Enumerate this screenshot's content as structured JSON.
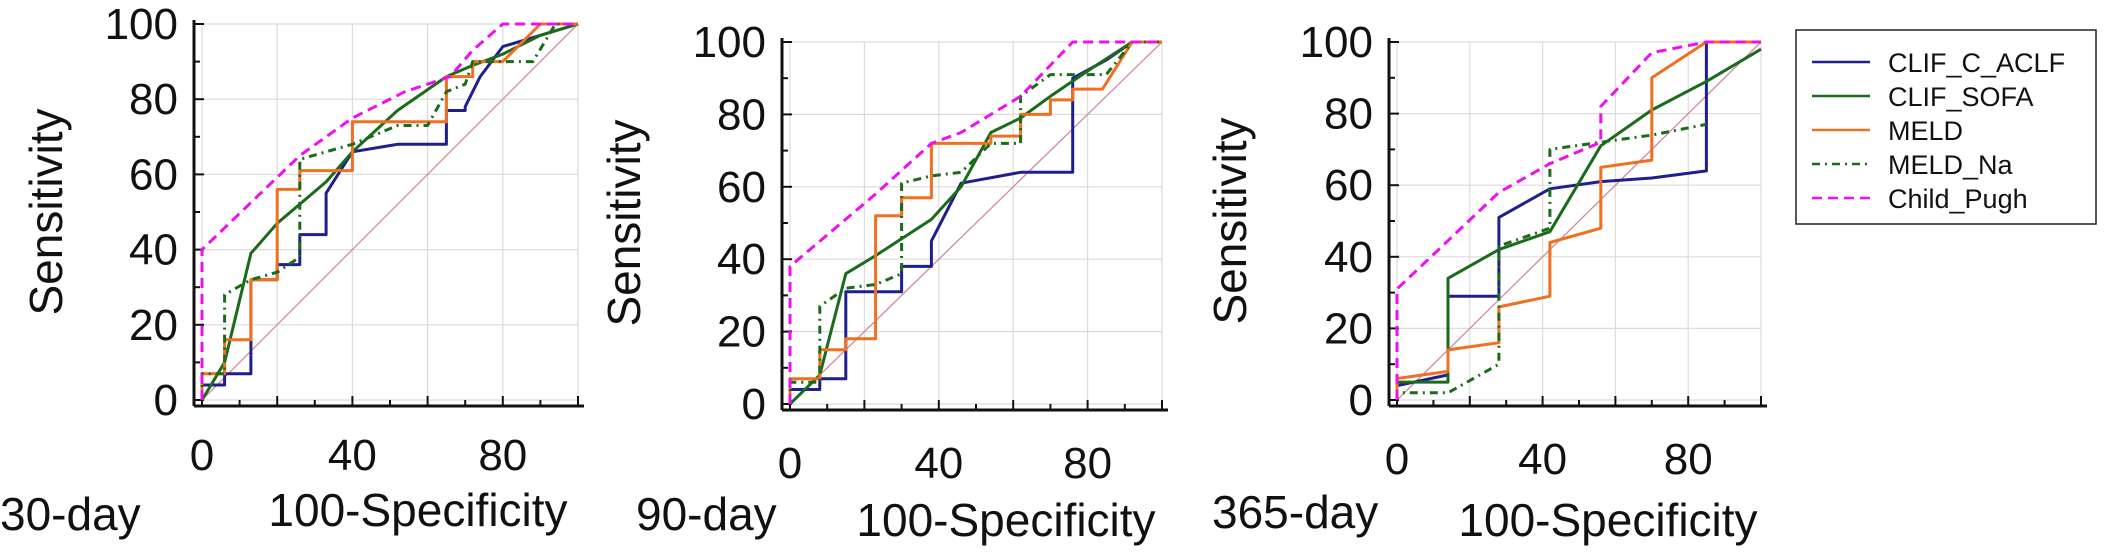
{
  "chart_data": [
    {
      "type": "line",
      "period_label": "30-day",
      "xlabel": "100-Specificity",
      "ylabel": "Sensitivity",
      "xlim": [
        0,
        100
      ],
      "ylim": [
        0,
        100
      ],
      "xticks": [
        0,
        40,
        80
      ],
      "yticks": [
        0,
        20,
        40,
        60,
        80,
        100
      ],
      "grid": true,
      "series": [
        {
          "name": "CLIF_C_ACLF",
          "color": "#1f1f8f",
          "dash": "solid",
          "x": [
            0,
            0,
            6,
            6,
            13,
            13,
            20,
            20,
            26,
            26,
            33,
            33,
            40,
            52,
            65,
            65,
            70,
            70,
            74,
            80,
            100
          ],
          "y": [
            0,
            4,
            4,
            7,
            7,
            32,
            32,
            36,
            36,
            44,
            44,
            55,
            66,
            68,
            68,
            77,
            77,
            78,
            86,
            94,
            100
          ]
        },
        {
          "name": "CLIF_SOFA",
          "color": "#1a6b1a",
          "dash": "solid",
          "x": [
            0,
            3,
            6,
            13,
            20,
            33,
            40,
            52,
            65,
            72,
            80,
            90,
            100
          ],
          "y": [
            0,
            5,
            10,
            39,
            47,
            58,
            66,
            77,
            86,
            89,
            92,
            97,
            100
          ]
        },
        {
          "name": "MELD",
          "color": "#f07020",
          "dash": "solid",
          "x": [
            0,
            0,
            6,
            6,
            13,
            13,
            20,
            20,
            26,
            26,
            33,
            33,
            40,
            40,
            52,
            52,
            65,
            65,
            72,
            72,
            80,
            90,
            100
          ],
          "y": [
            0,
            7,
            7,
            16,
            16,
            32,
            32,
            56,
            56,
            61,
            61,
            61,
            61,
            74,
            74,
            74,
            74,
            86,
            86,
            90,
            90,
            100,
            100
          ]
        },
        {
          "name": "MELD_Na",
          "color": "#1a6b1a",
          "dash": "8,5,2,5",
          "x": [
            0,
            0,
            6,
            6,
            13,
            20,
            26,
            26,
            33,
            40,
            52,
            60,
            65,
            70,
            72,
            80,
            88,
            94,
            100
          ],
          "y": [
            0,
            7,
            7,
            28,
            32,
            34,
            38,
            64,
            66,
            68,
            73,
            73,
            82,
            84,
            90,
            90,
            90,
            100,
            100
          ]
        },
        {
          "name": "Child_Pugh",
          "color": "#ee10ee",
          "dash": "10,6",
          "x": [
            0,
            0,
            26,
            40,
            54,
            66,
            72,
            80,
            100
          ],
          "y": [
            0,
            40,
            65,
            75,
            82,
            86,
            93,
            100,
            100
          ]
        }
      ]
    },
    {
      "type": "line",
      "period_label": "90-day",
      "xlabel": "100-Specificity",
      "ylabel": "Sensitivity",
      "xlim": [
        0,
        100
      ],
      "ylim": [
        0,
        100
      ],
      "xticks": [
        0,
        40,
        80
      ],
      "yticks": [
        0,
        20,
        40,
        60,
        80,
        100
      ],
      "grid": true,
      "series": [
        {
          "name": "CLIF_C_ACLF",
          "color": "#1f1f8f",
          "dash": "solid",
          "x": [
            0,
            0,
            8,
            8,
            15,
            15,
            23,
            23,
            30,
            30,
            38,
            38,
            46,
            62,
            76,
            76,
            85,
            92,
            100
          ],
          "y": [
            0,
            4,
            4,
            7,
            7,
            31,
            31,
            31,
            31,
            38,
            38,
            45,
            61,
            64,
            64,
            90,
            95,
            100,
            100
          ]
        },
        {
          "name": "CLIF_SOFA",
          "color": "#1a6b1a",
          "dash": "solid",
          "x": [
            0,
            3,
            8,
            15,
            23,
            38,
            46,
            54,
            62,
            70,
            80,
            92,
            100
          ],
          "y": [
            0,
            3,
            8,
            36,
            41,
            51,
            60,
            75,
            79,
            85,
            92,
            100,
            100
          ]
        },
        {
          "name": "MELD",
          "color": "#f07020",
          "dash": "solid",
          "x": [
            0,
            0,
            8,
            8,
            15,
            15,
            23,
            23,
            30,
            30,
            38,
            38,
            46,
            46,
            54,
            54,
            62,
            62,
            70,
            70,
            76,
            76,
            84,
            84,
            92,
            100
          ],
          "y": [
            0,
            7,
            7,
            15,
            15,
            18,
            18,
            52,
            52,
            57,
            57,
            72,
            72,
            72,
            72,
            74,
            74,
            80,
            80,
            84,
            84,
            87,
            87,
            87,
            100,
            100
          ]
        },
        {
          "name": "MELD_Na",
          "color": "#1a6b1a",
          "dash": "8,5,2,5",
          "x": [
            0,
            0,
            8,
            8,
            15,
            23,
            30,
            30,
            38,
            46,
            54,
            62,
            62,
            70,
            85,
            92,
            100
          ],
          "y": [
            0,
            6,
            6,
            27,
            32,
            33,
            36,
            61,
            63,
            64,
            72,
            72,
            85,
            91,
            91,
            100,
            100
          ]
        },
        {
          "name": "Child_Pugh",
          "color": "#ee10ee",
          "dash": "10,6",
          "x": [
            0,
            0,
            23,
            38,
            46,
            62,
            76,
            84,
            100
          ],
          "y": [
            0,
            38,
            58,
            72,
            75,
            85,
            100,
            100,
            100
          ]
        }
      ]
    },
    {
      "type": "line",
      "period_label": "365-day",
      "xlabel": "100-Specificity",
      "ylabel": "Sensitivity",
      "xlim": [
        0,
        100
      ],
      "ylim": [
        0,
        100
      ],
      "xticks": [
        0,
        40,
        80
      ],
      "yticks": [
        0,
        20,
        40,
        60,
        80,
        100
      ],
      "grid": true,
      "series": [
        {
          "name": "CLIF_C_ACLF",
          "color": "#1f1f8f",
          "dash": "solid",
          "x": [
            0,
            0,
            14,
            14,
            28,
            28,
            42,
            56,
            70,
            85,
            85,
            100
          ],
          "y": [
            0,
            4,
            7,
            29,
            29,
            51,
            59,
            61,
            62,
            64,
            100,
            100
          ]
        },
        {
          "name": "CLIF_SOFA",
          "color": "#1a6b1a",
          "dash": "solid",
          "x": [
            0,
            0,
            14,
            14,
            28,
            42,
            56,
            70,
            85,
            100
          ],
          "y": [
            0,
            5,
            5,
            34,
            42,
            47,
            71,
            81,
            89,
            98
          ]
        },
        {
          "name": "MELD",
          "color": "#f07020",
          "dash": "solid",
          "x": [
            0,
            0,
            14,
            14,
            28,
            28,
            42,
            42,
            56,
            56,
            70,
            70,
            85,
            100
          ],
          "y": [
            0,
            6,
            8,
            14,
            16,
            26,
            29,
            44,
            48,
            65,
            67,
            90,
            100,
            100
          ]
        },
        {
          "name": "MELD_Na",
          "color": "#1a6b1a",
          "dash": "8,5,2,5",
          "x": [
            0,
            0,
            14,
            28,
            28,
            42,
            42,
            56,
            70,
            85
          ],
          "y": [
            0,
            2,
            2,
            10,
            43,
            48,
            70,
            72,
            74,
            77
          ]
        },
        {
          "name": "Child_Pugh",
          "color": "#ee10ee",
          "dash": "10,6",
          "x": [
            0,
            0,
            28,
            42,
            56,
            56,
            70,
            85,
            100
          ],
          "y": [
            0,
            31,
            58,
            66,
            72,
            82,
            97,
            100,
            100
          ]
        }
      ]
    }
  ],
  "legend": {
    "placement": "right",
    "entries": [
      {
        "name": "CLIF_C_ACLF",
        "color": "#1f1f8f",
        "dash": "solid"
      },
      {
        "name": "CLIF_SOFA",
        "color": "#1a6b1a",
        "dash": "solid"
      },
      {
        "name": "MELD",
        "color": "#f07020",
        "dash": "solid"
      },
      {
        "name": "MELD_Na",
        "color": "#1a6b1a",
        "dash": "8,5,2,5"
      },
      {
        "name": "Child_Pugh",
        "color": "#ee10ee",
        "dash": "10,6"
      }
    ]
  },
  "reference_line_color": "#d08aa0"
}
